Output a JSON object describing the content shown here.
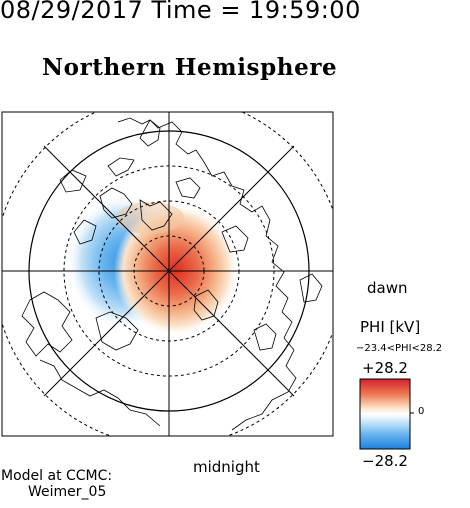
{
  "header": {
    "timestamp": "08/29/2017 Time = 19:59:00",
    "title": "Northern Hemisphere"
  },
  "map_labels": {
    "dawn": "dawn",
    "midnight": "midnight"
  },
  "colorbar": {
    "quantity_label": "PHI [kV]",
    "range_label": "−23.4<PHI<28.2",
    "max_label": "+28.2",
    "min_label": "−28.2",
    "zero_label": "0",
    "max_value": 28.2,
    "min_value": -28.2,
    "positive_color": "#e03a2e",
    "negative_color": "#3a9ee6",
    "neutral_color": "#ffffff"
  },
  "footer": {
    "model_line1": "Model at CCMC:",
    "model_line2": "Weimer_05"
  }
}
